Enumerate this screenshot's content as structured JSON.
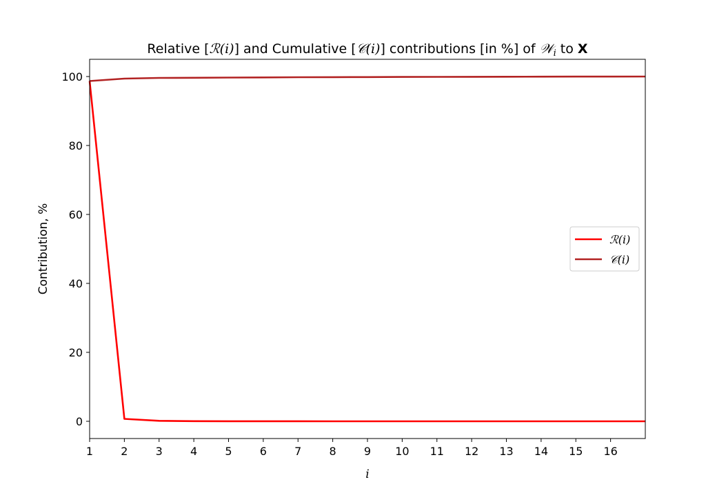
{
  "chart_data": {
    "type": "line",
    "title": {
      "p1": "Relative [",
      "m1": "ℛ(i)",
      "p2": "] and Cumulative [",
      "m2": "𝒞(i)",
      "p3": "] contributions [in %] of ",
      "m3": "𝒲",
      "m3sub": "i",
      "p4": " to ",
      "m4": "X"
    },
    "xlabel": "i",
    "ylabel": "Contribution, %",
    "xlim": [
      1,
      17
    ],
    "ylim": [
      -5,
      105
    ],
    "xticks": [
      1,
      2,
      3,
      4,
      5,
      6,
      7,
      8,
      9,
      10,
      11,
      12,
      13,
      14,
      15,
      16
    ],
    "yticks": [
      0,
      20,
      40,
      60,
      80,
      100
    ],
    "x": [
      1,
      2,
      3,
      4,
      5,
      6,
      7,
      8,
      9,
      10,
      11,
      12,
      13,
      14,
      15,
      16,
      17
    ],
    "series": [
      {
        "name": "ℛ(i)",
        "color": "#ff0000",
        "values": [
          98.7,
          0.7,
          0.15,
          0.05,
          0.03,
          0.02,
          0.02,
          0.01,
          0.01,
          0.01,
          0.01,
          0.01,
          0.01,
          0.01,
          0.01,
          0.01,
          0.01
        ]
      },
      {
        "name": "𝒞(i)",
        "color": "#b22222",
        "values": [
          98.7,
          99.4,
          99.6,
          99.65,
          99.7,
          99.75,
          99.8,
          99.82,
          99.85,
          99.87,
          99.9,
          99.92,
          99.94,
          99.96,
          99.97,
          99.98,
          100.0
        ]
      }
    ],
    "legend_position": "center-right",
    "grid": false
  }
}
